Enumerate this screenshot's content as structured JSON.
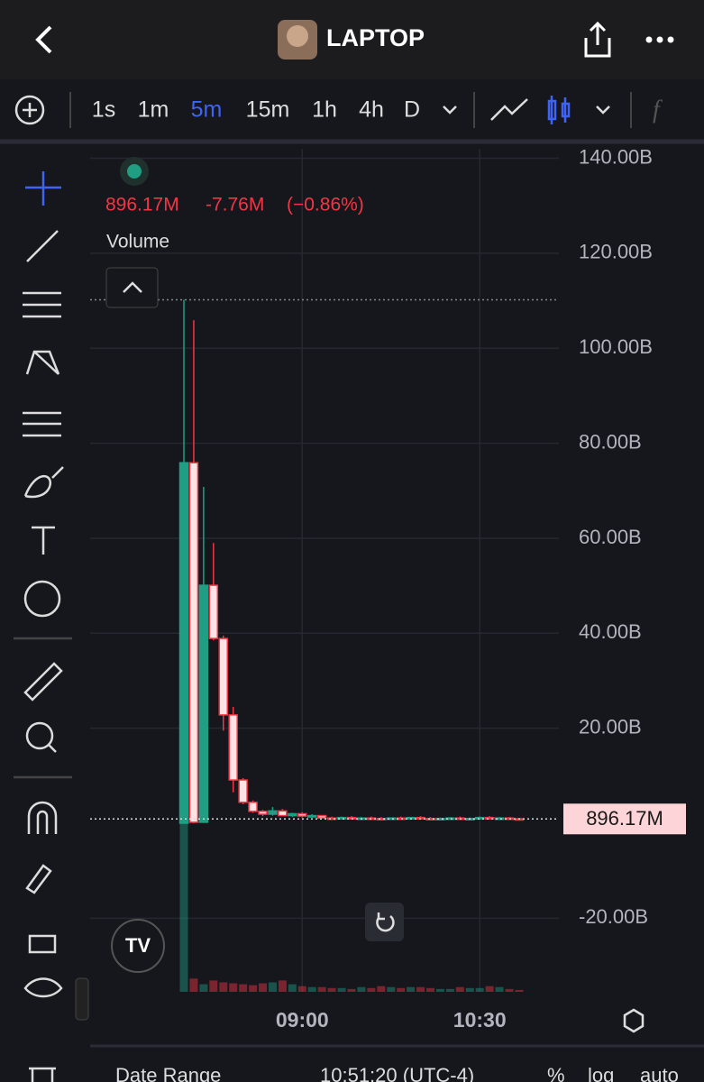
{
  "header": {
    "title": "LAPTOP"
  },
  "toolbar": {
    "intervals": [
      "1s",
      "1m",
      "5m",
      "15m",
      "1h",
      "4h",
      "D"
    ],
    "active": 2
  },
  "chart_data": {
    "type": "candlestick",
    "legend": {
      "price": "896.17M",
      "change": "-7.76M",
      "change_pct": "(−0.86%)",
      "indicator": "Volume"
    },
    "categories": [
      null,
      null,
      null,
      null,
      null,
      null,
      null,
      null,
      null,
      null,
      null,
      null,
      "09:00",
      null,
      null,
      null,
      null,
      null,
      null,
      null,
      null,
      null,
      null,
      null,
      null,
      null,
      null,
      null,
      null,
      null,
      "10:30",
      null,
      null,
      null,
      null
    ],
    "open": [
      0,
      75.9,
      0.2,
      50.1,
      38.9,
      22.8,
      9.1,
      4.4,
      2.5,
      1.9,
      2.6,
      1.6,
      2,
      1.5,
      1.6,
      1.1,
      1,
      1.2,
      0.9,
      1.1,
      1,
      0.9,
      1.1,
      1,
      1.2,
      1,
      0.9,
      1,
      1.1,
      0.9,
      1,
      1.2,
      1,
      1.1,
      0.95
    ],
    "high": [
      110.2,
      105.9,
      70.8,
      59,
      39.5,
      24.5,
      9.5,
      4.8,
      2.8,
      3.4,
      3,
      2.2,
      2.3,
      1.9,
      1.7,
      1.4,
      1.4,
      1.5,
      1.3,
      1.4,
      1.3,
      1.2,
      1.4,
      1.3,
      1.5,
      1.3,
      1.2,
      1.3,
      1.4,
      1.2,
      1.4,
      1.5,
      1.3,
      1.3,
      1.1
    ],
    "low": [
      0,
      0,
      0.2,
      38.5,
      19.5,
      6.5,
      4,
      2.2,
      1.5,
      1.6,
      1.5,
      1.3,
      1.2,
      1.2,
      1,
      0.9,
      0.8,
      0.9,
      0.7,
      0.8,
      0.8,
      0.7,
      0.8,
      0.8,
      0.9,
      0.8,
      0.7,
      0.8,
      0.8,
      0.7,
      0.8,
      0.9,
      0.8,
      0.8,
      0.85
    ],
    "close": [
      75.9,
      0.2,
      50.1,
      38.9,
      22.8,
      9.1,
      4.4,
      2.5,
      1.9,
      2.6,
      1.6,
      2,
      1.5,
      1.6,
      1.1,
      1,
      1.2,
      0.9,
      1.1,
      1,
      0.9,
      1.1,
      1,
      1.2,
      1,
      0.9,
      1,
      1.1,
      0.9,
      1,
      1.2,
      1,
      1.1,
      0.95,
      0.896
    ],
    "volume": [
      178,
      14,
      8,
      12,
      10,
      9,
      8,
      7,
      9,
      10,
      12,
      8,
      6,
      5,
      5,
      4,
      4,
      3,
      5,
      4,
      6,
      5,
      4,
      5,
      5,
      4,
      3,
      3,
      5,
      4,
      4,
      6,
      5,
      3,
      2
    ],
    "up_color": "#1f9e84",
    "down_color": "#f23645",
    "ylim": [
      -35.5,
      142
    ],
    "yticks": [
      {
        "value": 140,
        "label": "140.00B"
      },
      {
        "value": 120,
        "label": "120.00B"
      },
      {
        "value": 100,
        "label": "100.00B"
      },
      {
        "value": 80,
        "label": "80.00B"
      },
      {
        "value": 60,
        "label": "60.00B"
      },
      {
        "value": 40,
        "label": "40.00B"
      },
      {
        "value": 20,
        "label": "20.00B"
      },
      {
        "value": -20,
        "label": "-20.00B"
      }
    ],
    "last_price": {
      "value": 0.89617,
      "label": "896.17M"
    },
    "grid": true
  },
  "footer": {
    "date_range": "Date Range",
    "time": "10:51:20 (UTC-4)",
    "percent": "%",
    "log": "log",
    "auto": "auto"
  }
}
